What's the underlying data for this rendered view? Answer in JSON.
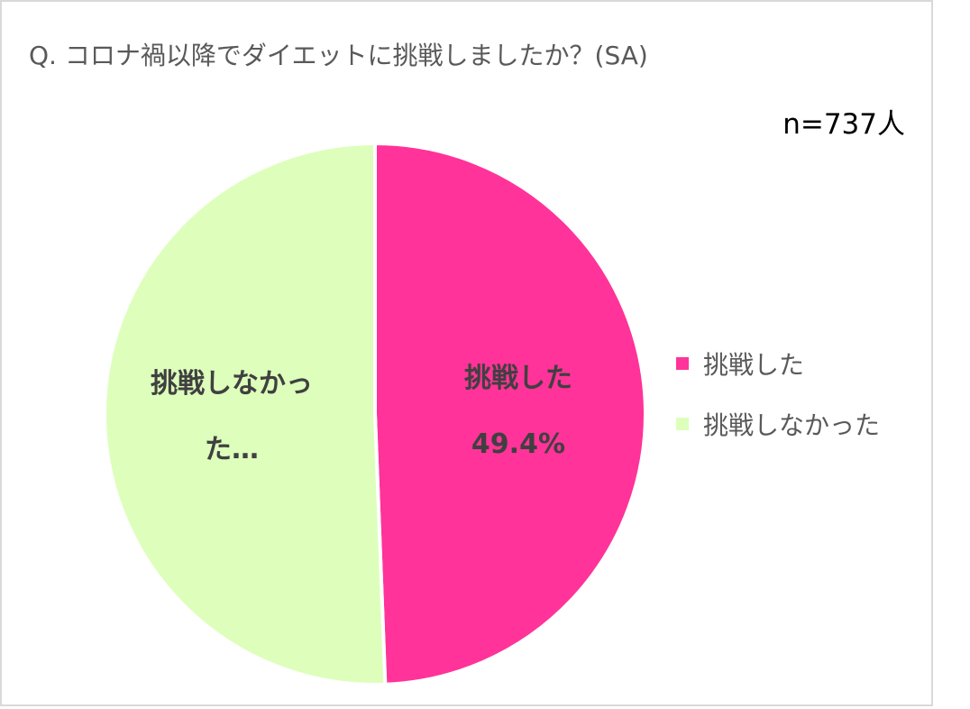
{
  "chart_data": {
    "type": "pie",
    "title": "Q. コロナ禍以降でダイエットに挑戦しましたか？(SA)",
    "annotation": "n=737人",
    "categories": [
      "挑戦した",
      "挑戦しなかった"
    ],
    "values": [
      49.4,
      50.6
    ],
    "value_labels": [
      "49.4%",
      null
    ],
    "slice_labels": [
      "挑戦した",
      "挑戦しなかった…"
    ],
    "colors": [
      "#ff3399",
      "#ddffbb"
    ],
    "legend": "right"
  }
}
